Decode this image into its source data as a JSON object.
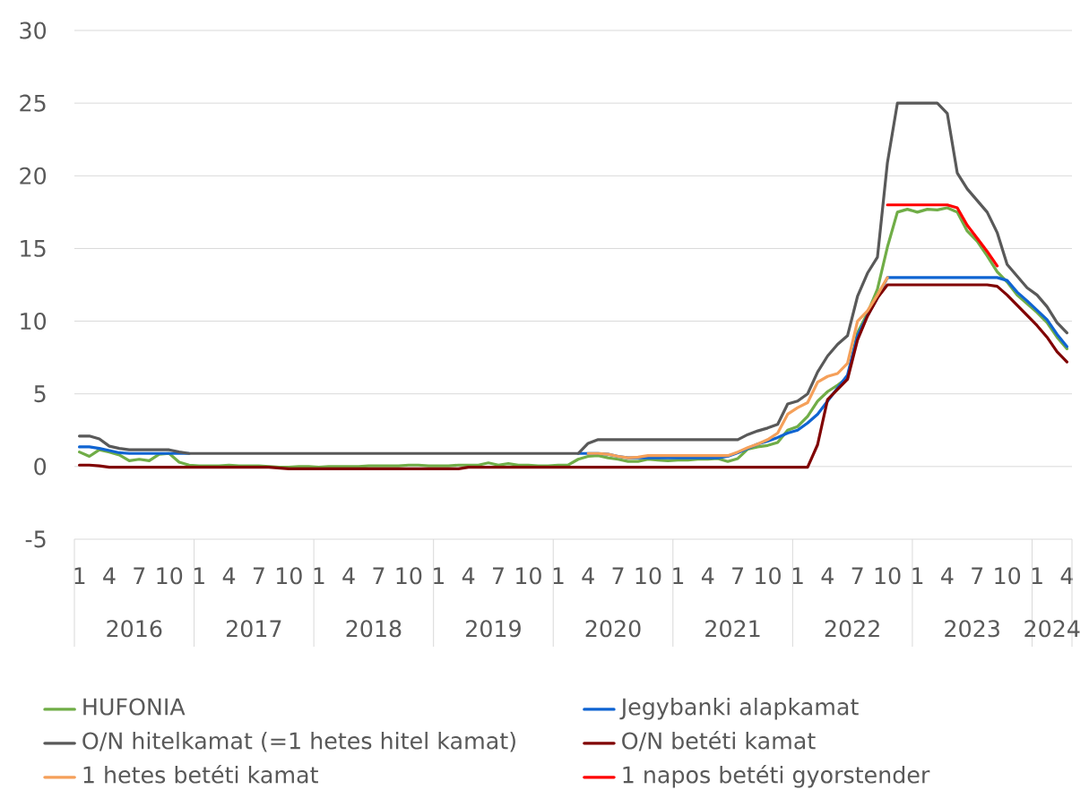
{
  "chart_data": {
    "type": "line",
    "categories": [
      "1",
      null,
      null,
      "4",
      null,
      null,
      "7",
      null,
      null,
      "10",
      null,
      null,
      "1",
      null,
      null,
      "4",
      null,
      null,
      "7",
      null,
      null,
      "10",
      null,
      null,
      "1",
      null,
      null,
      "4",
      null,
      null,
      "7",
      null,
      null,
      "10",
      null,
      null,
      "1",
      null,
      null,
      "4",
      null,
      null,
      "7",
      null,
      null,
      "10",
      null,
      null,
      "1",
      null,
      null,
      "4",
      null,
      null,
      "7",
      null,
      null,
      "10",
      null,
      null,
      "1",
      null,
      null,
      "4",
      null,
      null,
      "7",
      null,
      null,
      "10",
      null,
      null,
      "1",
      null,
      null,
      "4",
      null,
      null,
      "7",
      null,
      null,
      "10",
      null,
      null,
      "1",
      null,
      null,
      "4",
      null,
      null,
      "7",
      null,
      null,
      "10",
      null,
      null,
      "1",
      null,
      null,
      "4"
    ],
    "annotations": [
      "2016",
      "2017",
      "2018",
      "2019",
      "2020",
      "2021",
      "2022",
      "2023",
      "2024"
    ],
    "ylim": [
      -5,
      30
    ],
    "yticks": [
      -5,
      0,
      5,
      10,
      15,
      20,
      25,
      30
    ],
    "grid": "y",
    "legend": "bottom",
    "series": [
      {
        "name": "HUFONIA",
        "color": "#70ad47",
        "values": [
          1.0,
          0.7,
          1.15,
          1.0,
          0.8,
          0.4,
          0.5,
          0.4,
          0.85,
          0.9,
          0.3,
          0.1,
          0.05,
          0.05,
          0.05,
          0.1,
          0.05,
          0.05,
          0.05,
          0.0,
          -0.05,
          -0.05,
          0.0,
          0.0,
          -0.05,
          0.0,
          0.0,
          0.0,
          0.0,
          0.05,
          0.05,
          0.05,
          0.05,
          0.1,
          0.1,
          0.05,
          0.05,
          0.05,
          0.1,
          0.1,
          0.1,
          0.25,
          0.1,
          0.2,
          0.1,
          0.1,
          0.05,
          0.05,
          0.1,
          0.1,
          0.5,
          0.7,
          0.75,
          0.6,
          0.5,
          0.35,
          0.35,
          0.5,
          0.45,
          0.4,
          0.45,
          0.45,
          0.5,
          0.5,
          0.55,
          0.35,
          0.55,
          1.2,
          1.35,
          1.45,
          1.65,
          2.5,
          2.75,
          3.45,
          4.5,
          5.15,
          5.6,
          6.1,
          9.2,
          10.55,
          12.2,
          15.1,
          17.5,
          17.7,
          17.5,
          17.7,
          17.65,
          17.8,
          17.5,
          16.2,
          15.5,
          14.5,
          13.4,
          12.7,
          11.8,
          11.2,
          10.6,
          9.9,
          8.9,
          8.1
        ]
      },
      {
        "name": "Jegybanki alapkamat",
        "color": "#0f64d2",
        "values": [
          1.35,
          1.35,
          1.25,
          1.1,
          0.95,
          0.9,
          0.9,
          0.9,
          0.9,
          0.9,
          0.9,
          0.9,
          null,
          null,
          null,
          null,
          null,
          null,
          null,
          null,
          null,
          null,
          null,
          null,
          null,
          null,
          null,
          null,
          null,
          null,
          null,
          null,
          null,
          null,
          null,
          null,
          null,
          null,
          null,
          null,
          null,
          null,
          null,
          null,
          null,
          null,
          null,
          null,
          null,
          null,
          0.9,
          0.9,
          0.9,
          0.85,
          0.7,
          0.6,
          0.6,
          0.6,
          0.6,
          0.6,
          0.6,
          0.6,
          0.6,
          0.6,
          0.6,
          0.7,
          0.95,
          1.25,
          1.55,
          1.75,
          2.0,
          2.3,
          2.5,
          3.0,
          3.6,
          4.5,
          5.4,
          6.3,
          9.0,
          10.4,
          11.6,
          13.0,
          13.0,
          13.0,
          13.0,
          13.0,
          13.0,
          13.0,
          13.0,
          13.0,
          13.0,
          13.0,
          13.0,
          12.8,
          12.0,
          11.4,
          10.75,
          10.1,
          9.1,
          8.25
        ]
      },
      {
        "name": "O/N hitelkamat (=1 hetes hitel kamat)",
        "color": "#595959",
        "values": [
          2.1,
          2.1,
          1.9,
          1.4,
          1.25,
          1.15,
          1.15,
          1.15,
          1.15,
          1.15,
          1.0,
          0.9,
          0.9,
          0.9,
          0.9,
          0.9,
          0.9,
          0.9,
          0.9,
          0.9,
          0.9,
          0.9,
          0.9,
          0.9,
          0.9,
          0.9,
          0.9,
          0.9,
          0.9,
          0.9,
          0.9,
          0.9,
          0.9,
          0.9,
          0.9,
          0.9,
          0.9,
          0.9,
          0.9,
          0.9,
          0.9,
          0.9,
          0.9,
          0.9,
          0.9,
          0.9,
          0.9,
          0.9,
          0.9,
          0.9,
          0.9,
          1.6,
          1.85,
          1.85,
          1.85,
          1.85,
          1.85,
          1.85,
          1.85,
          1.85,
          1.85,
          1.85,
          1.85,
          1.85,
          1.85,
          1.85,
          1.85,
          2.2,
          2.45,
          2.65,
          2.9,
          4.3,
          4.5,
          5.0,
          6.5,
          7.6,
          8.4,
          9.0,
          11.7,
          13.3,
          14.4,
          20.9,
          25,
          25,
          25,
          25,
          25,
          24.3,
          20.2,
          19.1,
          18.3,
          17.5,
          16.1,
          13.9,
          13.1,
          12.3,
          11.8,
          11.0,
          9.9,
          9.2
        ]
      },
      {
        "name": "O/N betéti kamat",
        "color": "#800000",
        "values": [
          0.1,
          0.1,
          0.05,
          -0.05,
          -0.05,
          -0.05,
          -0.05,
          -0.05,
          -0.05,
          -0.05,
          -0.05,
          -0.05,
          -0.05,
          -0.05,
          -0.05,
          -0.05,
          -0.05,
          -0.05,
          -0.05,
          -0.05,
          -0.1,
          -0.15,
          -0.15,
          -0.15,
          -0.15,
          -0.15,
          -0.15,
          -0.15,
          -0.15,
          -0.15,
          -0.15,
          -0.15,
          -0.15,
          -0.15,
          -0.15,
          -0.15,
          -0.15,
          -0.15,
          -0.15,
          -0.05,
          -0.05,
          -0.05,
          -0.05,
          -0.05,
          -0.05,
          -0.05,
          -0.05,
          -0.05,
          -0.05,
          -0.05,
          -0.05,
          -0.05,
          -0.05,
          -0.05,
          -0.05,
          -0.05,
          -0.05,
          -0.05,
          -0.05,
          -0.05,
          -0.05,
          -0.05,
          -0.05,
          -0.05,
          -0.05,
          -0.05,
          -0.05,
          -0.05,
          -0.05,
          -0.05,
          -0.05,
          -0.05,
          -0.05,
          -0.05,
          1.5,
          4.6,
          5.3,
          6.0,
          8.7,
          10.35,
          11.6,
          12.5,
          12.5,
          12.5,
          12.5,
          12.5,
          12.5,
          12.5,
          12.5,
          12.5,
          12.5,
          12.5,
          12.4,
          11.8,
          11.1,
          10.4,
          9.7,
          8.9,
          7.9,
          7.2
        ]
      },
      {
        "name": "1 hetes betéti kamat",
        "color": "#f5a05a",
        "values": [
          null,
          null,
          null,
          null,
          null,
          null,
          null,
          null,
          null,
          null,
          null,
          null,
          null,
          null,
          null,
          null,
          null,
          null,
          null,
          null,
          null,
          null,
          null,
          null,
          null,
          null,
          null,
          null,
          null,
          null,
          null,
          null,
          null,
          null,
          null,
          null,
          null,
          null,
          null,
          null,
          null,
          null,
          null,
          null,
          null,
          null,
          null,
          null,
          null,
          null,
          null,
          0.9,
          0.9,
          0.85,
          0.7,
          0.6,
          0.65,
          0.75,
          0.75,
          0.75,
          0.75,
          0.75,
          0.75,
          0.75,
          0.75,
          0.75,
          1.0,
          1.3,
          1.55,
          1.85,
          2.3,
          3.6,
          4.05,
          4.4,
          5.8,
          6.2,
          6.4,
          7.1,
          10.0,
          10.7,
          11.8,
          13.0,
          null,
          null,
          null,
          null,
          null,
          null,
          null,
          null,
          null,
          null,
          null,
          null,
          null,
          null,
          null,
          null,
          null,
          null
        ]
      },
      {
        "name": "1 napos betéti gyorstender",
        "color": "#ff0000",
        "values": [
          null,
          null,
          null,
          null,
          null,
          null,
          null,
          null,
          null,
          null,
          null,
          null,
          null,
          null,
          null,
          null,
          null,
          null,
          null,
          null,
          null,
          null,
          null,
          null,
          null,
          null,
          null,
          null,
          null,
          null,
          null,
          null,
          null,
          null,
          null,
          null,
          null,
          null,
          null,
          null,
          null,
          null,
          null,
          null,
          null,
          null,
          null,
          null,
          null,
          null,
          null,
          null,
          null,
          null,
          null,
          null,
          null,
          null,
          null,
          null,
          null,
          null,
          null,
          null,
          null,
          null,
          null,
          null,
          null,
          null,
          null,
          null,
          null,
          null,
          null,
          null,
          null,
          null,
          null,
          null,
          null,
          18.0,
          18.0,
          18.0,
          18.0,
          18.0,
          18.0,
          18.0,
          17.8,
          16.6,
          15.7,
          14.8,
          13.8,
          null,
          null,
          null,
          null,
          null,
          null,
          null
        ]
      }
    ]
  }
}
